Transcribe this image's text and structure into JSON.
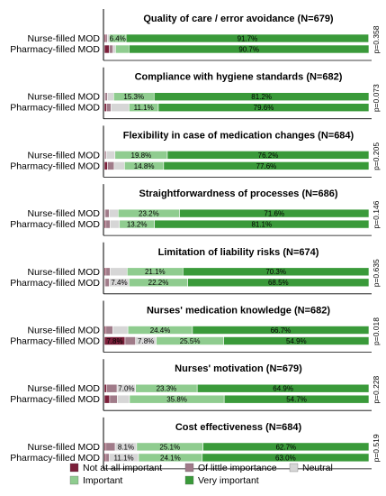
{
  "chart_data": {
    "type": "bar",
    "stacked": true,
    "orientation": "horizontal",
    "categories": [
      "Nurse-filled MOD",
      "Pharmacy-filled MOD"
    ],
    "legend": {
      "placement": "bottom",
      "entries": [
        "Not at all important",
        "Of little importance",
        "Neutral",
        "Important",
        "Very important"
      ]
    },
    "colors": [
      "#7b1f3a",
      "#a07b89",
      "#d6d6d6",
      "#8fcc8f",
      "#3a9a3a"
    ],
    "xlim": [
      0,
      100
    ],
    "panels": [
      {
        "title": "Quality of care / error avoidance (N=679)",
        "p_value": "p=0.358",
        "rows": [
          {
            "values": [
              0.6,
              0.6,
              0.6,
              6.4,
              91.7
            ],
            "labels": [
              "",
              "",
              "",
              "6.4%",
              "91.7%"
            ]
          },
          {
            "values": [
              1.8,
              1.5,
              0.9,
              5.1,
              90.7
            ],
            "labels": [
              "",
              "",
              "",
              "",
              "90.7%"
            ]
          }
        ]
      },
      {
        "title": "Compliance with hygiene standards (N=682)",
        "p_value": "p=0.073",
        "rows": [
          {
            "values": [
              0.3,
              0.9,
              2.3,
              15.3,
              81.2
            ],
            "labels": [
              "",
              "",
              "",
              "15.3%",
              "81.2%"
            ]
          },
          {
            "values": [
              0.9,
              1.6,
              6.8,
              11.1,
              79.6
            ],
            "labels": [
              "",
              "",
              "",
              "11.1%",
              "79.6%"
            ]
          }
        ]
      },
      {
        "title": "Flexibility in case of medication changes (N=684)",
        "p_value": "p=0.205",
        "rows": [
          {
            "values": [
              0.3,
              0.5,
              3.2,
              19.8,
              76.2
            ],
            "labels": [
              "",
              "",
              "",
              "19.8%",
              "76.2%"
            ]
          },
          {
            "values": [
              1.2,
              2.5,
              3.9,
              14.8,
              77.6
            ],
            "labels": [
              "",
              "",
              "",
              "14.8%",
              "77.6%"
            ]
          }
        ]
      },
      {
        "title": "Straightforwardness of processes (N=686)",
        "p_value": "p=0.146",
        "rows": [
          {
            "values": [
              0.3,
              1.5,
              3.4,
              23.2,
              71.6
            ],
            "labels": [
              "",
              "",
              "",
              "23.2%",
              "71.6%"
            ]
          },
          {
            "values": [
              0.6,
              1.6,
              3.5,
              13.2,
              81.1
            ],
            "labels": [
              "",
              "",
              "",
              "13.2%",
              "81.1%"
            ]
          }
        ]
      },
      {
        "title": "Limitation of liability risks (N=674)",
        "p_value": "p=0.635",
        "rows": [
          {
            "values": [
              0.6,
              1.6,
              6.4,
              21.1,
              70.3
            ],
            "labels": [
              "",
              "",
              "",
              "21.1%",
              "70.3%"
            ]
          },
          {
            "values": [
              0.3,
              1.6,
              7.4,
              22.2,
              68.5
            ],
            "labels": [
              "",
              "",
              "7.4%",
              "22.2%",
              "68.5%"
            ]
          }
        ]
      },
      {
        "title": "Nurses' medication knowledge (N=682)",
        "p_value": "p=0.018",
        "rows": [
          {
            "values": [
              0.6,
              2.6,
              5.7,
              24.4,
              66.7
            ],
            "labels": [
              "",
              "",
              "",
              "24.4%",
              "66.7%"
            ]
          },
          {
            "values": [
              7.8,
              4.0,
              7.8,
              25.5,
              54.9
            ],
            "labels": [
              "7.8%",
              "",
              "7.8%",
              "25.5%",
              "54.9%"
            ]
          }
        ]
      },
      {
        "title": "Nurses' motivation (N=679)",
        "p_value": "p=0.228",
        "rows": [
          {
            "values": [
              0.9,
              3.9,
              7.0,
              23.3,
              64.9
            ],
            "labels": [
              "",
              "",
              "7.0%",
              "23.3%",
              "64.9%"
            ]
          },
          {
            "values": [
              2.0,
              2.9,
              4.6,
              35.8,
              54.7
            ],
            "labels": [
              "",
              "",
              "",
              "35.8%",
              "54.7%"
            ]
          }
        ]
      },
      {
        "title": "Cost effectiveness (N=684)",
        "p_value": "p=0.519",
        "rows": [
          {
            "values": [
              0.6,
              3.5,
              8.1,
              25.1,
              62.7
            ],
            "labels": [
              "",
              "",
              "8.1%",
              "25.1%",
              "62.7%"
            ]
          },
          {
            "values": [
              0.6,
              1.2,
              11.1,
              24.1,
              63.0
            ],
            "labels": [
              "",
              "",
              "11.1%",
              "24.1%",
              "63.0%"
            ]
          }
        ]
      }
    ]
  }
}
